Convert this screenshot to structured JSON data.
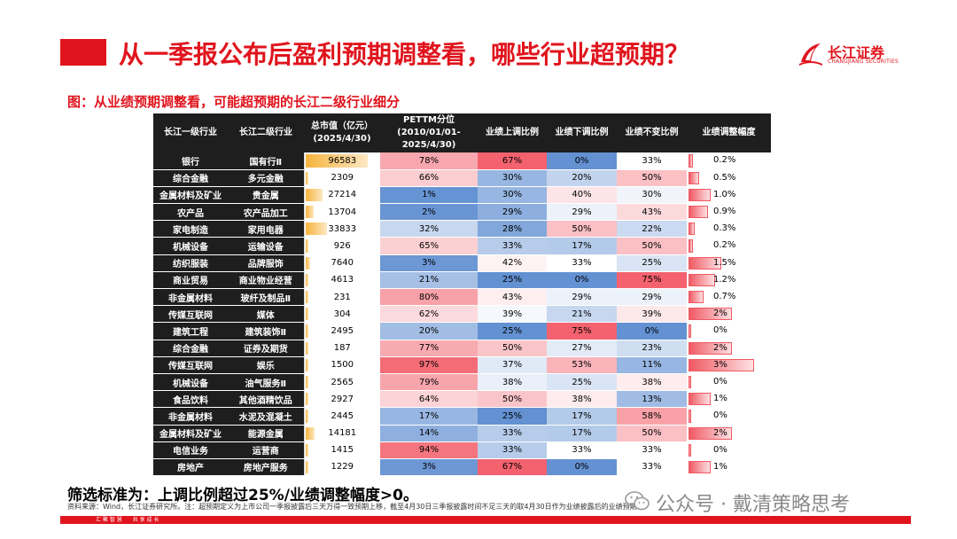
{
  "header": {
    "title": "从一季报公布后盈利预期调整看，哪些行业超预期？",
    "logo_cn": "长江证券",
    "logo_en": "CHANGJIANG SECURITIES",
    "logo_icon": "changjiang-sail-icon",
    "accent_color": "#e0141d"
  },
  "subtitle": "图：从业绩预期调整看，可能超预期的长江二级行业细分",
  "table": {
    "headers": [
      "长江一级行业",
      "长江二级行业",
      "总市值（亿元）(2025/4/30)",
      "PETTM分位(2010/01/01-2025/4/30)",
      "业绩上调比例",
      "业绩下调比例",
      "业绩不变比例",
      "业绩调整幅度"
    ],
    "max_mcap": 96583,
    "max_adj_pct": 3,
    "rows": [
      {
        "l1": "银行",
        "l2": "国有行Ⅱ",
        "mcap": "96583",
        "pe": "78%",
        "up": "67%",
        "down": "0%",
        "flat": "33%",
        "adj": "0.2%"
      },
      {
        "l1": "综合金融",
        "l2": "多元金融",
        "mcap": "2309",
        "pe": "66%",
        "up": "30%",
        "down": "20%",
        "flat": "50%",
        "adj": "0.5%"
      },
      {
        "l1": "金属材料及矿业",
        "l2": "贵金属",
        "mcap": "27214",
        "pe": "1%",
        "up": "30%",
        "down": "40%",
        "flat": "30%",
        "adj": "1.0%"
      },
      {
        "l1": "农产品",
        "l2": "农产品加工",
        "mcap": "13704",
        "pe": "2%",
        "up": "29%",
        "down": "29%",
        "flat": "43%",
        "adj": "0.9%"
      },
      {
        "l1": "家电制造",
        "l2": "家用电器",
        "mcap": "33833",
        "pe": "32%",
        "up": "28%",
        "down": "50%",
        "flat": "22%",
        "adj": "0.3%"
      },
      {
        "l1": "机械设备",
        "l2": "运输设备",
        "mcap": "926",
        "pe": "65%",
        "up": "33%",
        "down": "17%",
        "flat": "50%",
        "adj": "0.2%"
      },
      {
        "l1": "纺织服装",
        "l2": "品牌服饰",
        "mcap": "7640",
        "pe": "3%",
        "up": "42%",
        "down": "33%",
        "flat": "25%",
        "adj": "1.5%"
      },
      {
        "l1": "商业贸易",
        "l2": "商业物业经营",
        "mcap": "4613",
        "pe": "21%",
        "up": "25%",
        "down": "0%",
        "flat": "75%",
        "adj": "1.2%"
      },
      {
        "l1": "非金属材料",
        "l2": "玻纤及制品Ⅱ",
        "mcap": "231",
        "pe": "80%",
        "up": "43%",
        "down": "29%",
        "flat": "29%",
        "adj": "0.7%"
      },
      {
        "l1": "传媒互联网",
        "l2": "媒体",
        "mcap": "304",
        "pe": "62%",
        "up": "39%",
        "down": "21%",
        "flat": "39%",
        "adj": "2%"
      },
      {
        "l1": "建筑工程",
        "l2": "建筑装饰Ⅱ",
        "mcap": "2495",
        "pe": "20%",
        "up": "25%",
        "down": "75%",
        "flat": "0%",
        "adj": "0%"
      },
      {
        "l1": "综合金融",
        "l2": "证券及期货",
        "mcap": "187",
        "pe": "77%",
        "up": "50%",
        "down": "27%",
        "flat": "23%",
        "adj": "2%"
      },
      {
        "l1": "传媒互联网",
        "l2": "娱乐",
        "mcap": "1500",
        "pe": "97%",
        "up": "37%",
        "down": "53%",
        "flat": "11%",
        "adj": "3%"
      },
      {
        "l1": "机械设备",
        "l2": "油气服务Ⅱ",
        "mcap": "2565",
        "pe": "79%",
        "up": "38%",
        "down": "25%",
        "flat": "38%",
        "adj": "0%"
      },
      {
        "l1": "食品饮料",
        "l2": "其他酒精饮品",
        "mcap": "2927",
        "pe": "64%",
        "up": "50%",
        "down": "38%",
        "flat": "13%",
        "adj": "1%"
      },
      {
        "l1": "非金属材料",
        "l2": "水泥及混凝土",
        "mcap": "2445",
        "pe": "17%",
        "up": "25%",
        "down": "17%",
        "flat": "58%",
        "adj": "0%"
      },
      {
        "l1": "金属材料及矿业",
        "l2": "能源金属",
        "mcap": "14181",
        "pe": "14%",
        "up": "33%",
        "down": "17%",
        "flat": "50%",
        "adj": "2%"
      },
      {
        "l1": "电信业务",
        "l2": "运营商",
        "mcap": "1415",
        "pe": "94%",
        "up": "33%",
        "down": "33%",
        "flat": "33%",
        "adj": "0%"
      },
      {
        "l1": "房地产",
        "l2": "房地产服务",
        "mcap": "1229",
        "pe": "3%",
        "up": "67%",
        "down": "0%",
        "flat": "33%",
        "adj": "1%"
      }
    ]
  },
  "criteria": "筛选标准为：上调比例超过25%/业绩调整幅度>0。",
  "source": "资料来源：Wind，长江证券研究所。注：超预期定义为上市公司一季报披露后三天万得一致预期上移，截至4月30日三季报披露时间不足三天的取4月30日作为业绩披露后的业绩预期值",
  "watermark": "公众号 · 戴清策略思考",
  "watermark_icon": "wechat-icon",
  "footer": "汇 聚 智 慧　　共 享 成 长"
}
